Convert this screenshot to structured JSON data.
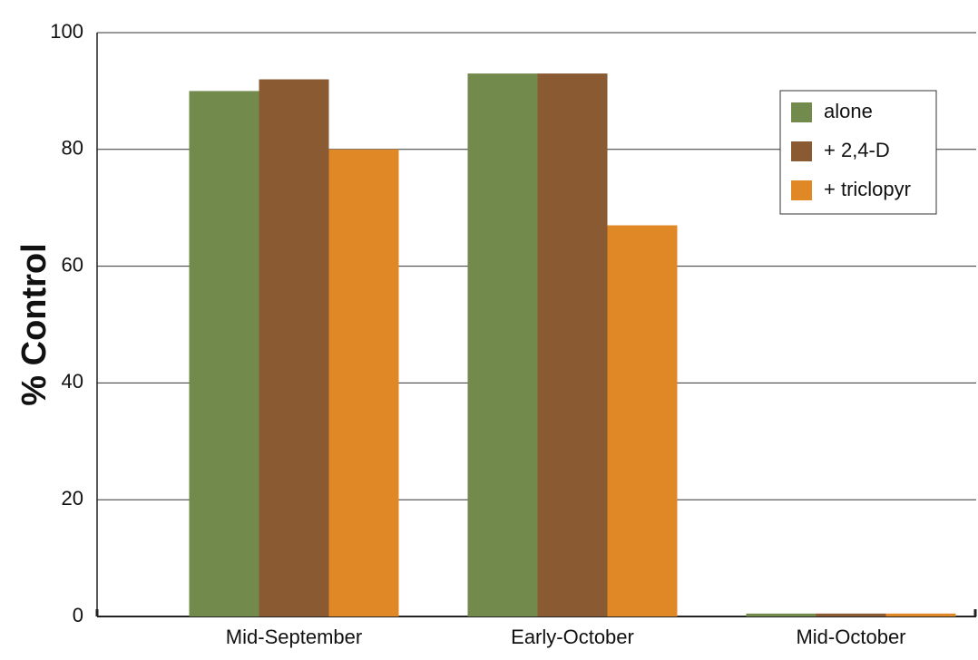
{
  "chart_data": {
    "type": "bar",
    "y_label": "% Control",
    "categories": [
      "Mid-September",
      "Early-October",
      "Mid-October"
    ],
    "series": [
      {
        "name": "alone",
        "color": "#728a4b",
        "values": [
          90,
          93,
          0.5
        ]
      },
      {
        "name": "+ 2,4-D",
        "color": "#8a5a33",
        "values": [
          92,
          93,
          0.5
        ]
      },
      {
        "name": "+ triclopyr",
        "color": "#e08826",
        "values": [
          80,
          67,
          0.5
        ]
      }
    ],
    "ylim": [
      0,
      100
    ],
    "yticks": [
      0,
      20,
      40,
      60,
      80,
      100
    ],
    "grid": true,
    "legend": "upper-right"
  }
}
